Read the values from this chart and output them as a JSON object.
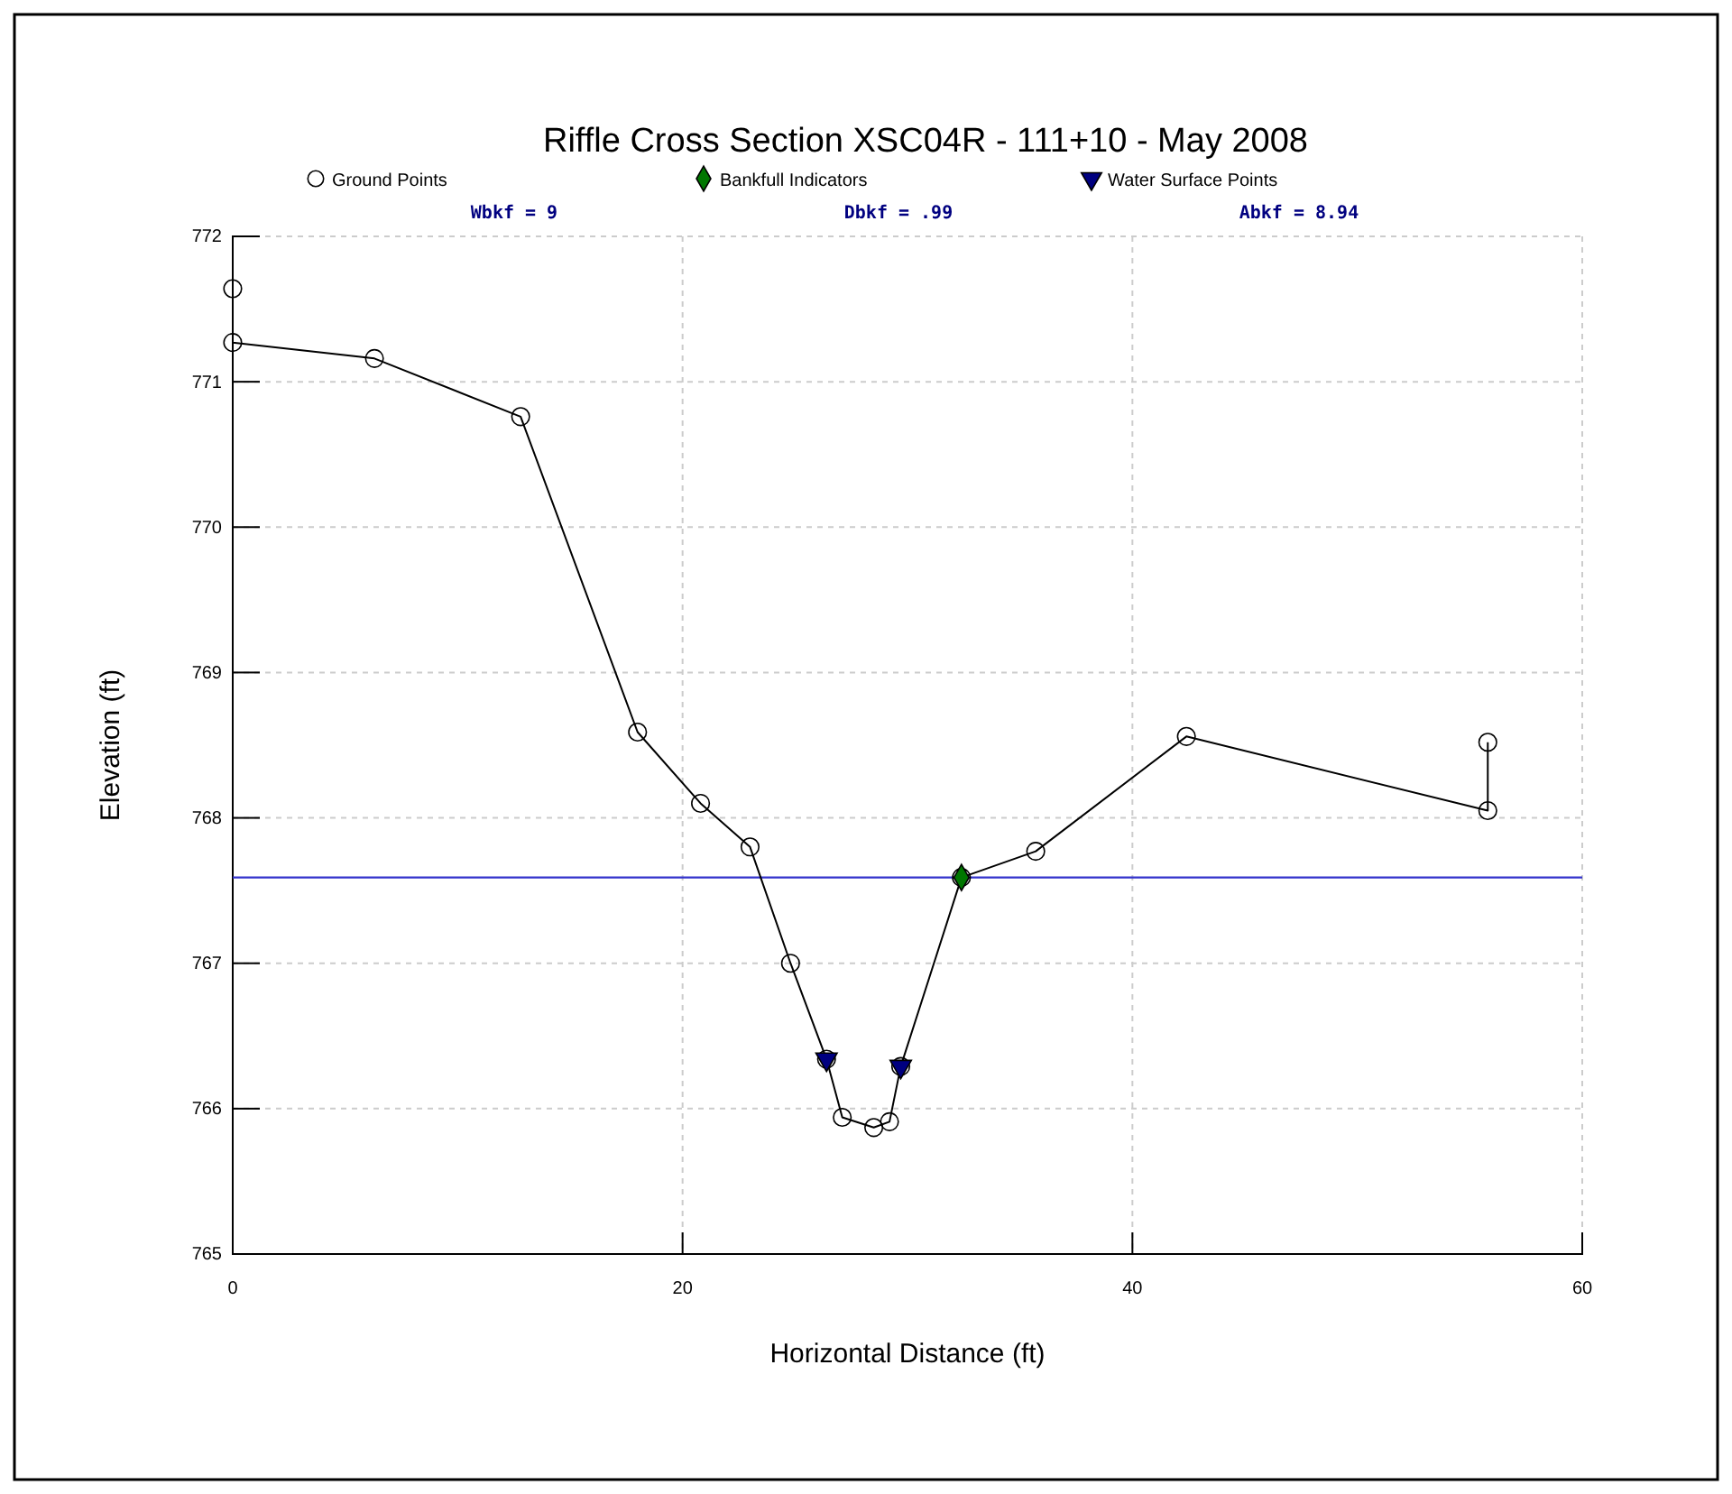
{
  "chart_data": {
    "type": "line",
    "title": "Riffle Cross Section XSC04R - 111+10 - May 2008",
    "xlabel": "Horizontal Distance (ft)",
    "ylabel": "Elevation (ft)",
    "annotations": [
      "Wbkf = 9",
      "Dbkf = .99",
      "Abkf = 8.94"
    ],
    "series": [
      {
        "name": "Ground Points",
        "color": "#000000",
        "marker": "circle",
        "x": [
          0,
          0,
          6.3,
          12.8,
          18,
          20.8,
          23,
          24.8,
          26.4,
          27.1,
          28.5,
          29.2,
          29.7,
          32.4,
          35.7,
          42.4,
          55.8,
          55.8
        ],
        "values": [
          771.64,
          771.27,
          771.16,
          770.76,
          768.59,
          768.1,
          767.8,
          767,
          766.34,
          765.94,
          765.87,
          765.91,
          766.29,
          767.59,
          767.77,
          768.56,
          768.05,
          768.52
        ]
      },
      {
        "name": "Bankfull Indicators",
        "type": "scatter",
        "color": "#007700",
        "marker": "diamond",
        "x": [
          32.4
        ],
        "values": [
          767.59
        ]
      },
      {
        "name": "Water Surface Points",
        "type": "scatter",
        "color": "#000080",
        "marker": "triangle",
        "x": [
          26.4,
          29.7
        ],
        "values": [
          766.34,
          766.29
        ]
      }
    ],
    "ref_lines": [
      {
        "axis": "y",
        "value": 767.59,
        "color": "#3333cc"
      }
    ],
    "xlim": [
      0,
      60
    ],
    "xticks": [
      0,
      20,
      40,
      60
    ],
    "ylim": [
      765,
      772
    ],
    "yticks": [
      765,
      766,
      767,
      768,
      769,
      770,
      771,
      772
    ],
    "grid": true,
    "legend": "top"
  }
}
